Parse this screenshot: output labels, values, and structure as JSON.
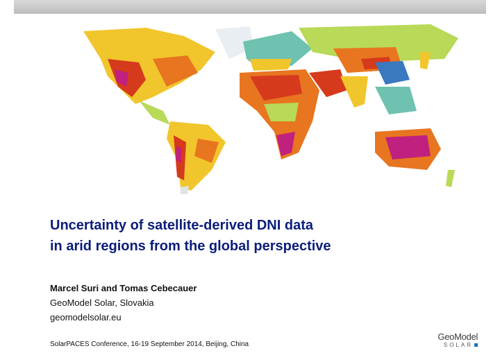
{
  "slide": {
    "title_line1": "Uncertainty of satellite-derived DNI data",
    "title_line2": "in arid regions from the global perspective",
    "authors": "Marcel Suri and Tomas Cebecauer",
    "affiliation": "GeoModel Solar, Slovakia",
    "website": "geomodelsolar.eu",
    "footer": "SolarPACES Conference, 16-19 September 2014, Beijing, China"
  },
  "logo": {
    "word": "GeoModel",
    "sub": "SOLAR"
  },
  "map_colors": {
    "ocean": "#ffffff",
    "low": "#3a78c0",
    "cool": "#6fc2b0",
    "mid": "#b9d958",
    "warm": "#f1c52c",
    "hot": "#e8751f",
    "very_hot": "#d63a1c",
    "peak": "#c0207e"
  }
}
